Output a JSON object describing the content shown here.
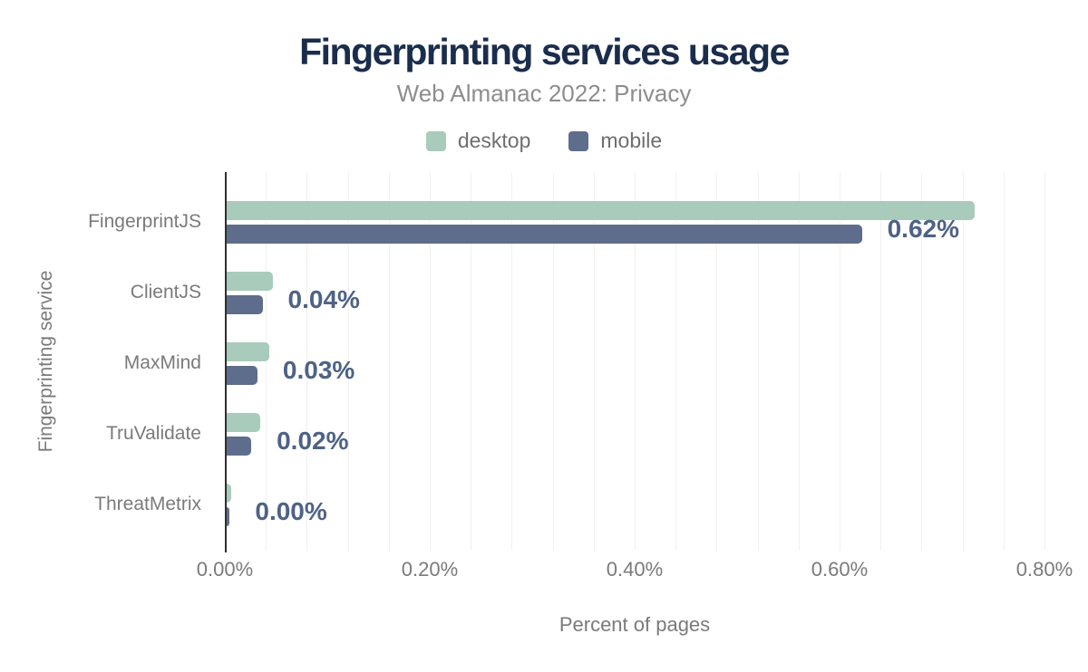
{
  "chart_data": {
    "type": "bar",
    "orientation": "horizontal",
    "title": "Fingerprinting services usage",
    "subtitle": "Web Almanac 2022: Privacy",
    "categories": [
      "FingerprintJS",
      "ClientJS",
      "MaxMind",
      "TruValidate",
      "ThreatMetrix"
    ],
    "series": [
      {
        "name": "desktop",
        "color": "#a8cbbb",
        "values": [
          0.73,
          0.045,
          0.042,
          0.033,
          0.004
        ]
      },
      {
        "name": "mobile",
        "color": "#5e6d8c",
        "values": [
          0.62,
          0.035,
          0.03,
          0.024,
          0.003
        ]
      }
    ],
    "value_labels": [
      "0.62%",
      "0.04%",
      "0.03%",
      "0.02%",
      "0.00%"
    ],
    "value_labels_series": "mobile",
    "xlabel": "Percent of pages",
    "ylabel": "Fingerprinting service",
    "x_ticks": [
      "0.00%",
      "0.20%",
      "0.40%",
      "0.60%",
      "0.80%"
    ],
    "xlim": [
      0,
      0.8
    ],
    "grid": "vertical gridlines every 0.04%",
    "legend_position": "top"
  },
  "colors": {
    "title": "#1b2d4c",
    "subtitle": "#8d8d8d",
    "axis_text": "#7a7a7a",
    "legend_text": "#6e6e6e",
    "value_label": "#4e6286",
    "desktop": "#a8cbbb",
    "mobile": "#5e6d8c",
    "gridline": "#f1f1f1",
    "axis_line": "#2f2f2f",
    "background": "#ffffff"
  }
}
